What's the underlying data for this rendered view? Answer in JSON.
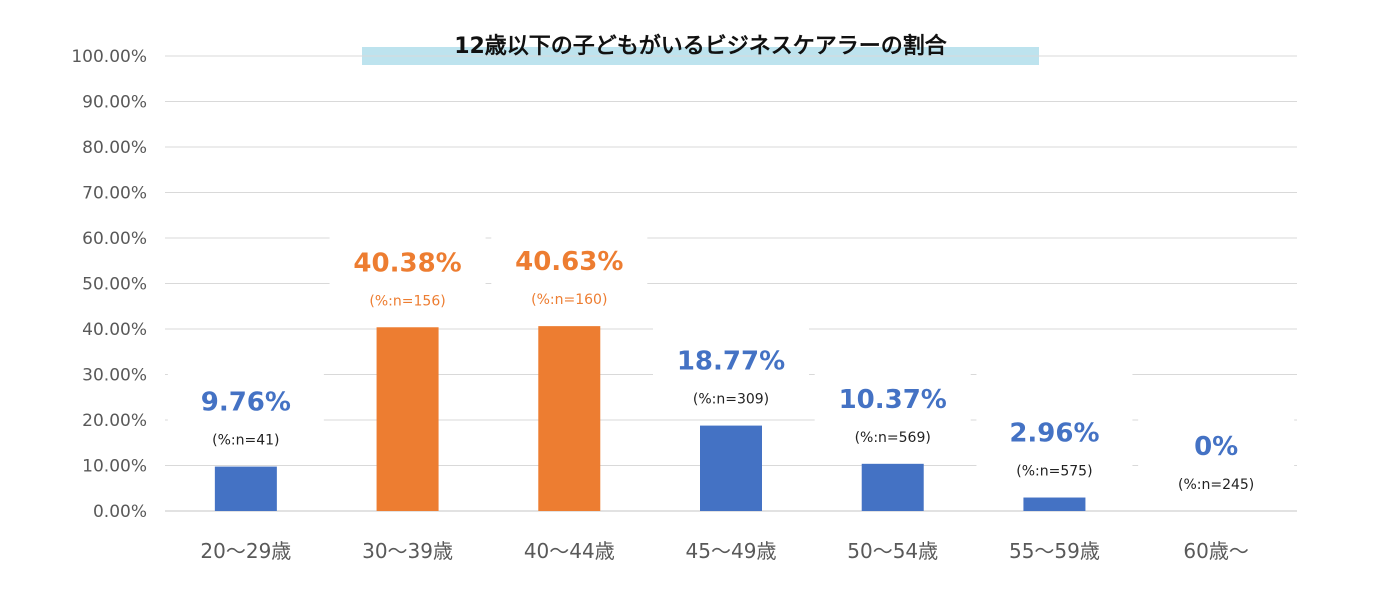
{
  "chart_data": {
    "type": "bar",
    "title": "12歳以下の子どもがいるビジネスケアラーの割合",
    "categories": [
      "20〜29歳",
      "30〜39歳",
      "40〜44歳",
      "45〜49歳",
      "50〜54歳",
      "55〜59歳",
      "60歳〜"
    ],
    "values": [
      9.76,
      40.38,
      40.63,
      18.77,
      10.37,
      2.96,
      0
    ],
    "value_labels": [
      "9.76%",
      "40.38%",
      "40.63%",
      "18.77%",
      "10.37%",
      "2.96%",
      "0%"
    ],
    "n_labels": [
      "(%:n=41)",
      "(%:n=156)",
      "(%:n=160)",
      "(%:n=309)",
      "(%:n=569)",
      "(%:n=575)",
      "(%:n=245)"
    ],
    "highlight": [
      false,
      true,
      true,
      false,
      false,
      false,
      false
    ],
    "yticks": [
      "0.00%",
      "10.00%",
      "20.00%",
      "30.00%",
      "40.00%",
      "50.00%",
      "60.00%",
      "70.00%",
      "80.00%",
      "90.00%",
      "100.00%"
    ],
    "ylim": [
      0,
      100
    ],
    "grid": true,
    "legend": "none",
    "colors": {
      "normal": "#4472c4",
      "highlight": "#ed7d31",
      "label_normal": "#4472c4",
      "label_highlight": "#ed7d31",
      "n_normal": "#222222",
      "n_highlight": "#ed7d31",
      "grid": "#d9d9d9",
      "title_band": "#bde3ee"
    }
  }
}
